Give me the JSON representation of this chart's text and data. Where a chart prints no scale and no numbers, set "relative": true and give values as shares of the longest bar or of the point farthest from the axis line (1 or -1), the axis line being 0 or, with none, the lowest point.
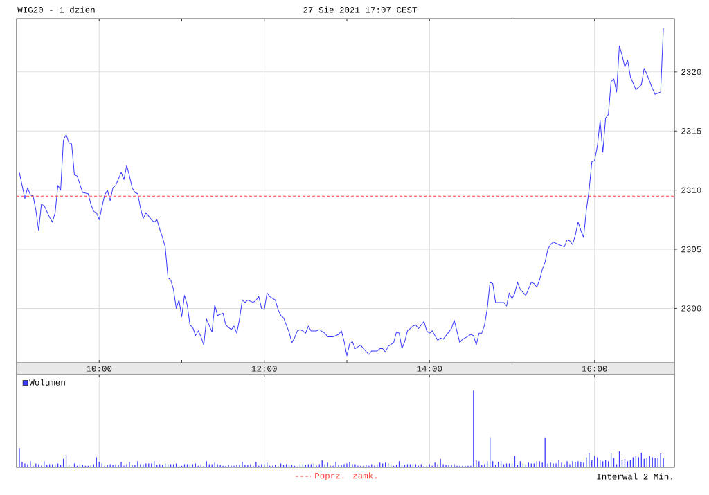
{
  "chart_data": [
    {
      "type": "line",
      "title": "WIG20 - 1 dzien",
      "subtitle": "27 Sie 2021 17:07 CEST",
      "x": [
        "2021-08-27T09:02",
        "2021-08-27T09:04",
        "2021-08-27T09:06",
        "2021-08-27T09:08",
        "2021-08-27T09:10",
        "2021-08-27T09:12",
        "2021-08-27T09:14",
        "2021-08-27T09:16",
        "2021-08-27T09:18",
        "2021-08-27T09:20",
        "2021-08-27T09:24",
        "2021-08-27T09:26",
        "2021-08-27T09:28",
        "2021-08-27T09:30",
        "2021-08-27T09:32",
        "2021-08-27T09:34",
        "2021-08-27T09:36",
        "2021-08-27T09:38",
        "2021-08-27T09:40",
        "2021-08-27T09:42",
        "2021-08-27T09:44",
        "2021-08-27T09:48",
        "2021-08-27T09:52",
        "2021-08-27T09:54",
        "2021-08-27T09:56",
        "2021-08-27T09:58",
        "2021-08-27T10:00",
        "2021-08-27T10:04",
        "2021-08-27T10:06",
        "2021-08-27T10:08",
        "2021-08-27T10:10",
        "2021-08-27T10:12",
        "2021-08-27T10:16",
        "2021-08-27T10:18",
        "2021-08-27T10:20",
        "2021-08-27T10:22",
        "2021-08-27T10:24",
        "2021-08-27T10:26",
        "2021-08-27T10:28",
        "2021-08-27T10:30",
        "2021-08-27T10:32",
        "2021-08-27T10:34",
        "2021-08-27T10:38",
        "2021-08-27T10:40",
        "2021-08-27T10:42",
        "2021-08-27T10:44",
        "2021-08-27T10:46",
        "2021-08-27T10:48",
        "2021-08-27T10:50",
        "2021-08-27T10:52",
        "2021-08-27T10:54",
        "2021-08-27T10:56",
        "2021-08-27T10:58",
        "2021-08-27T11:00",
        "2021-08-27T11:02",
        "2021-08-27T11:04",
        "2021-08-27T11:06",
        "2021-08-27T11:08",
        "2021-08-27T11:10",
        "2021-08-27T11:12",
        "2021-08-27T11:14",
        "2021-08-27T11:16",
        "2021-08-27T11:18",
        "2021-08-27T11:22",
        "2021-08-27T11:24",
        "2021-08-27T11:26",
        "2021-08-27T11:30",
        "2021-08-27T11:32",
        "2021-08-27T11:36",
        "2021-08-27T11:38",
        "2021-08-27T11:40",
        "2021-08-27T11:42",
        "2021-08-27T11:44",
        "2021-08-27T11:46",
        "2021-08-27T11:48",
        "2021-08-27T11:52",
        "2021-08-27T11:54",
        "2021-08-27T11:56",
        "2021-08-27T11:58",
        "2021-08-27T12:00",
        "2021-08-27T12:02",
        "2021-08-27T12:04",
        "2021-08-27T12:08",
        "2021-08-27T12:10",
        "2021-08-27T12:12",
        "2021-08-27T12:14",
        "2021-08-27T12:18",
        "2021-08-27T12:20",
        "2021-08-27T12:22",
        "2021-08-27T12:24",
        "2021-08-27T12:26",
        "2021-08-27T12:28",
        "2021-08-27T12:30",
        "2021-08-27T12:32",
        "2021-08-27T12:34",
        "2021-08-27T12:38",
        "2021-08-27T12:40",
        "2021-08-27T12:44",
        "2021-08-27T12:46",
        "2021-08-27T12:50",
        "2021-08-27T12:52",
        "2021-08-27T12:54",
        "2021-08-27T12:56",
        "2021-08-27T12:58",
        "2021-08-27T13:00",
        "2021-08-27T13:02",
        "2021-08-27T13:04",
        "2021-08-27T13:06",
        "2021-08-27T13:10",
        "2021-08-27T13:12",
        "2021-08-27T13:16",
        "2021-08-27T13:18",
        "2021-08-27T13:22",
        "2021-08-27T13:24",
        "2021-08-27T13:26",
        "2021-08-27T13:28",
        "2021-08-27T13:30",
        "2021-08-27T13:34",
        "2021-08-27T13:36",
        "2021-08-27T13:38",
        "2021-08-27T13:40",
        "2021-08-27T13:42",
        "2021-08-27T13:44",
        "2021-08-27T13:48",
        "2021-08-27T13:50",
        "2021-08-27T13:52",
        "2021-08-27T13:54",
        "2021-08-27T13:56",
        "2021-08-27T13:58",
        "2021-08-27T14:00",
        "2021-08-27T14:02",
        "2021-08-27T14:06",
        "2021-08-27T14:08",
        "2021-08-27T14:10",
        "2021-08-27T14:14",
        "2021-08-27T14:16",
        "2021-08-27T14:18",
        "2021-08-27T14:22",
        "2021-08-27T14:24",
        "2021-08-27T14:26",
        "2021-08-27T14:30",
        "2021-08-27T14:32",
        "2021-08-27T14:34",
        "2021-08-27T14:36",
        "2021-08-27T14:38",
        "2021-08-27T14:40",
        "2021-08-27T14:42",
        "2021-08-27T14:44",
        "2021-08-27T14:46",
        "2021-08-27T14:48",
        "2021-08-27T14:52",
        "2021-08-27T14:54",
        "2021-08-27T14:56",
        "2021-08-27T14:58",
        "2021-08-27T15:00",
        "2021-08-27T15:02",
        "2021-08-27T15:04",
        "2021-08-27T15:06",
        "2021-08-27T15:10",
        "2021-08-27T15:14",
        "2021-08-27T15:16",
        "2021-08-27T15:18",
        "2021-08-27T15:20",
        "2021-08-27T15:22",
        "2021-08-27T15:24",
        "2021-08-27T15:26",
        "2021-08-27T15:28",
        "2021-08-27T15:30",
        "2021-08-27T15:34",
        "2021-08-27T15:38",
        "2021-08-27T15:40",
        "2021-08-27T15:42",
        "2021-08-27T15:44",
        "2021-08-27T15:46",
        "2021-08-27T15:48",
        "2021-08-27T15:50",
        "2021-08-27T15:52",
        "2021-08-27T15:54",
        "2021-08-27T15:56",
        "2021-08-27T15:58",
        "2021-08-27T16:00",
        "2021-08-27T16:02",
        "2021-08-27T16:04",
        "2021-08-27T16:06",
        "2021-08-27T16:08",
        "2021-08-27T16:10",
        "2021-08-27T16:12",
        "2021-08-27T16:14",
        "2021-08-27T16:16",
        "2021-08-27T16:18",
        "2021-08-27T16:20",
        "2021-08-27T16:22",
        "2021-08-27T16:24",
        "2021-08-27T16:26",
        "2021-08-27T16:30",
        "2021-08-27T16:34",
        "2021-08-27T16:36",
        "2021-08-27T16:38",
        "2021-08-27T16:42",
        "2021-08-27T16:44",
        "2021-08-27T16:46",
        "2021-08-27T16:48",
        "2021-08-27T16:50"
      ],
      "series": [
        {
          "color": "#3939ff",
          "values": [
            2311.5,
            2310.4,
            2309.3,
            2310.2,
            2309.6,
            2309.5,
            2308.3,
            2306.6,
            2308.8,
            2308.7,
            2307.7,
            2307.3,
            2308.1,
            2310.4,
            2310.0,
            2314.2,
            2314.7,
            2314.0,
            2313.9,
            2311.3,
            2311.2,
            2309.8,
            2309.7,
            2308.8,
            2308.2,
            2308.1,
            2307.5,
            2309.6,
            2310.0,
            2309.1,
            2310.2,
            2310.4,
            2311.5,
            2310.9,
            2312.1,
            2311.2,
            2310.2,
            2309.8,
            2309.7,
            2308.5,
            2307.6,
            2308.1,
            2307.5,
            2307.3,
            2307.5,
            2306.7,
            2306.0,
            2305.2,
            2302.6,
            2302.4,
            2301.6,
            2300.0,
            2300.7,
            2299.3,
            2301.1,
            2300.3,
            2298.6,
            2298.4,
            2297.7,
            2298.1,
            2297.6,
            2296.9,
            2299.1,
            2298.0,
            2300.3,
            2299.4,
            2299.6,
            2298.6,
            2298.2,
            2298.5,
            2297.9,
            2299.1,
            2300.7,
            2300.5,
            2300.7,
            2300.5,
            2300.7,
            2301.0,
            2300.0,
            2299.9,
            2301.3,
            2301.0,
            2300.7,
            2299.9,
            2299.4,
            2299.2,
            2298.0,
            2297.1,
            2297.5,
            2298.1,
            2298.2,
            2298.1,
            2297.9,
            2298.5,
            2298.1,
            2298.1,
            2298.2,
            2297.9,
            2297.6,
            2297.6,
            2297.7,
            2297.8,
            2298.1,
            2297.2,
            2296.0,
            2297.0,
            2297.2,
            2296.6,
            2296.9,
            2296.6,
            2296.1,
            2296.4,
            2296.4,
            2296.6,
            2296.6,
            2296.3,
            2296.8,
            2297.1,
            2298.0,
            2297.9,
            2296.6,
            2297.2,
            2298.1,
            2298.5,
            2298.6,
            2298.3,
            2298.6,
            2298.9,
            2298.1,
            2297.9,
            2298.1,
            2297.3,
            2297.5,
            2297.4,
            2298.0,
            2298.3,
            2299.0,
            2297.1,
            2297.4,
            2297.5,
            2297.8,
            2297.7,
            2296.9,
            2297.9,
            2297.9,
            2298.6,
            2300.0,
            2302.2,
            2302.1,
            2300.5,
            2300.5,
            2300.5,
            2300.2,
            2301.3,
            2300.8,
            2301.3,
            2302.2,
            2301.6,
            2301.1,
            2302.2,
            2302.1,
            2301.8,
            2302.4,
            2303.3,
            2303.9,
            2305.0,
            2305.4,
            2305.6,
            2305.4,
            2305.2,
            2305.8,
            2305.7,
            2305.4,
            2306.2,
            2307.3,
            2306.6,
            2306.0,
            2308.3,
            2310.0,
            2312.4,
            2312.5,
            2313.7,
            2315.9,
            2313.2,
            2316.1,
            2316.4,
            2319.2,
            2319.4,
            2318.3,
            2322.2,
            2321.4,
            2320.4,
            2321.0,
            2319.6,
            2318.5,
            2318.9,
            2320.3,
            2319.8,
            2318.6,
            2318.1,
            2318.2,
            2318.3,
            2323.7
          ]
        }
      ],
      "xlim": [
        "2021-08-27T09:00",
        "2021-08-27T16:58"
      ],
      "ylim": [
        2295.4,
        2324.5
      ],
      "xticks": [
        {
          "value": "2021-08-27T10:00",
          "label": "10:00"
        },
        {
          "value": "2021-08-27T11:00",
          "label": null
        },
        {
          "value": "2021-08-27T12:00",
          "label": "12:00"
        },
        {
          "value": "2021-08-27T13:00",
          "label": null
        },
        {
          "value": "2021-08-27T14:00",
          "label": "14:00"
        },
        {
          "value": "2021-08-27T15:00",
          "label": null
        },
        {
          "value": "2021-08-27T16:00",
          "label": "16:00"
        }
      ],
      "yticks": [
        2300,
        2305,
        2310,
        2315,
        2320
      ],
      "grid": true,
      "ref_lines": [
        {
          "axis": "y",
          "value": 2309.5,
          "label": "Poprz. zamk.",
          "color": "#ff4040",
          "line_style": "dashed"
        }
      ]
    },
    {
      "type": "bar",
      "relative": true,
      "x": [
        "2021-08-27T09:02",
        "2021-08-27T09:04",
        "2021-08-27T09:06",
        "2021-08-27T09:08",
        "2021-08-27T09:10",
        "2021-08-27T09:12",
        "2021-08-27T09:14",
        "2021-08-27T09:16",
        "2021-08-27T09:18",
        "2021-08-27T09:20",
        "2021-08-27T09:22",
        "2021-08-27T09:24",
        "2021-08-27T09:26",
        "2021-08-27T09:28",
        "2021-08-27T09:30",
        "2021-08-27T09:32",
        "2021-08-27T09:34",
        "2021-08-27T09:36",
        "2021-08-27T09:38",
        "2021-08-27T09:40",
        "2021-08-27T09:42",
        "2021-08-27T09:44",
        "2021-08-27T09:46",
        "2021-08-27T09:48",
        "2021-08-27T09:50",
        "2021-08-27T09:52",
        "2021-08-27T09:54",
        "2021-08-27T09:56",
        "2021-08-27T09:58",
        "2021-08-27T10:00",
        "2021-08-27T10:02",
        "2021-08-27T10:04",
        "2021-08-27T10:06",
        "2021-08-27T10:08",
        "2021-08-27T10:10",
        "2021-08-27T10:12",
        "2021-08-27T10:14",
        "2021-08-27T10:16",
        "2021-08-27T10:18",
        "2021-08-27T10:20",
        "2021-08-27T10:22",
        "2021-08-27T10:24",
        "2021-08-27T10:26",
        "2021-08-27T10:28",
        "2021-08-27T10:30",
        "2021-08-27T10:32",
        "2021-08-27T10:34",
        "2021-08-27T10:36",
        "2021-08-27T10:38",
        "2021-08-27T10:40",
        "2021-08-27T10:42",
        "2021-08-27T10:44",
        "2021-08-27T10:46",
        "2021-08-27T10:48",
        "2021-08-27T10:50",
        "2021-08-27T10:52",
        "2021-08-27T10:54",
        "2021-08-27T10:56",
        "2021-08-27T10:58",
        "2021-08-27T11:00",
        "2021-08-27T11:02",
        "2021-08-27T11:04",
        "2021-08-27T11:06",
        "2021-08-27T11:08",
        "2021-08-27T11:10",
        "2021-08-27T11:12",
        "2021-08-27T11:14",
        "2021-08-27T11:16",
        "2021-08-27T11:18",
        "2021-08-27T11:20",
        "2021-08-27T11:22",
        "2021-08-27T11:24",
        "2021-08-27T11:26",
        "2021-08-27T11:28",
        "2021-08-27T11:30",
        "2021-08-27T11:32",
        "2021-08-27T11:34",
        "2021-08-27T11:36",
        "2021-08-27T11:38",
        "2021-08-27T11:40",
        "2021-08-27T11:42",
        "2021-08-27T11:44",
        "2021-08-27T11:46",
        "2021-08-27T11:48",
        "2021-08-27T11:50",
        "2021-08-27T11:52",
        "2021-08-27T11:54",
        "2021-08-27T11:56",
        "2021-08-27T11:58",
        "2021-08-27T12:00",
        "2021-08-27T12:02",
        "2021-08-27T12:04",
        "2021-08-27T12:06",
        "2021-08-27T12:08",
        "2021-08-27T12:10",
        "2021-08-27T12:12",
        "2021-08-27T12:14",
        "2021-08-27T12:16",
        "2021-08-27T12:18",
        "2021-08-27T12:20",
        "2021-08-27T12:22",
        "2021-08-27T12:24",
        "2021-08-27T12:26",
        "2021-08-27T12:28",
        "2021-08-27T12:30",
        "2021-08-27T12:32",
        "2021-08-27T12:34",
        "2021-08-27T12:36",
        "2021-08-27T12:38",
        "2021-08-27T12:40",
        "2021-08-27T12:42",
        "2021-08-27T12:44",
        "2021-08-27T12:46",
        "2021-08-27T12:48",
        "2021-08-27T12:50",
        "2021-08-27T12:52",
        "2021-08-27T12:54",
        "2021-08-27T12:56",
        "2021-08-27T12:58",
        "2021-08-27T13:00",
        "2021-08-27T13:02",
        "2021-08-27T13:04",
        "2021-08-27T13:06",
        "2021-08-27T13:08",
        "2021-08-27T13:10",
        "2021-08-27T13:12",
        "2021-08-27T13:14",
        "2021-08-27T13:16",
        "2021-08-27T13:18",
        "2021-08-27T13:20",
        "2021-08-27T13:22",
        "2021-08-27T13:24",
        "2021-08-27T13:26",
        "2021-08-27T13:28",
        "2021-08-27T13:30",
        "2021-08-27T13:32",
        "2021-08-27T13:34",
        "2021-08-27T13:36",
        "2021-08-27T13:38",
        "2021-08-27T13:40",
        "2021-08-27T13:42",
        "2021-08-27T13:44",
        "2021-08-27T13:46",
        "2021-08-27T13:48",
        "2021-08-27T13:50",
        "2021-08-27T13:52",
        "2021-08-27T13:54",
        "2021-08-27T13:56",
        "2021-08-27T13:58",
        "2021-08-27T14:00",
        "2021-08-27T14:02",
        "2021-08-27T14:04",
        "2021-08-27T14:06",
        "2021-08-27T14:08",
        "2021-08-27T14:10",
        "2021-08-27T14:12",
        "2021-08-27T14:14",
        "2021-08-27T14:16",
        "2021-08-27T14:18",
        "2021-08-27T14:20",
        "2021-08-27T14:22",
        "2021-08-27T14:24",
        "2021-08-27T14:26",
        "2021-08-27T14:28",
        "2021-08-27T14:30",
        "2021-08-27T14:32",
        "2021-08-27T14:34",
        "2021-08-27T14:36",
        "2021-08-27T14:38",
        "2021-08-27T14:40",
        "2021-08-27T14:42",
        "2021-08-27T14:44",
        "2021-08-27T14:46",
        "2021-08-27T14:48",
        "2021-08-27T14:50",
        "2021-08-27T14:52",
        "2021-08-27T14:54",
        "2021-08-27T14:56",
        "2021-08-27T14:58",
        "2021-08-27T15:00",
        "2021-08-27T15:02",
        "2021-08-27T15:04",
        "2021-08-27T15:06",
        "2021-08-27T15:08",
        "2021-08-27T15:10",
        "2021-08-27T15:12",
        "2021-08-27T15:14",
        "2021-08-27T15:16",
        "2021-08-27T15:18",
        "2021-08-27T15:20",
        "2021-08-27T15:22",
        "2021-08-27T15:24",
        "2021-08-27T15:26",
        "2021-08-27T15:28",
        "2021-08-27T15:30",
        "2021-08-27T15:32",
        "2021-08-27T15:34",
        "2021-08-27T15:36",
        "2021-08-27T15:38",
        "2021-08-27T15:40",
        "2021-08-27T15:42",
        "2021-08-27T15:44",
        "2021-08-27T15:46",
        "2021-08-27T15:48",
        "2021-08-27T15:50",
        "2021-08-27T15:52",
        "2021-08-27T15:54",
        "2021-08-27T15:56",
        "2021-08-27T15:58",
        "2021-08-27T16:00",
        "2021-08-27T16:02",
        "2021-08-27T16:04",
        "2021-08-27T16:06",
        "2021-08-27T16:08",
        "2021-08-27T16:10",
        "2021-08-27T16:12",
        "2021-08-27T16:14",
        "2021-08-27T16:16",
        "2021-08-27T16:18",
        "2021-08-27T16:20",
        "2021-08-27T16:22",
        "2021-08-27T16:24",
        "2021-08-27T16:26",
        "2021-08-27T16:28",
        "2021-08-27T16:30",
        "2021-08-27T16:32",
        "2021-08-27T16:34",
        "2021-08-27T16:36",
        "2021-08-27T16:38",
        "2021-08-27T16:40",
        "2021-08-27T16:42",
        "2021-08-27T16:44",
        "2021-08-27T16:46",
        "2021-08-27T16:48",
        "2021-08-27T16:50"
      ],
      "series": [
        {
          "name": "Wolumen",
          "color": "#3c3cff",
          "values": [
            0.25,
            0.07,
            0.05,
            0.04,
            0.08,
            0.02,
            0.05,
            0.04,
            0.02,
            0.08,
            0.03,
            0.04,
            0.04,
            0.04,
            0.05,
            0.03,
            0.11,
            0.16,
            0.03,
            0.01,
            0.05,
            0.02,
            0.04,
            0.03,
            0.02,
            0.02,
            0.03,
            0.04,
            0.13,
            0.07,
            0.05,
            0.02,
            0.03,
            0.04,
            0.03,
            0.04,
            0.03,
            0.07,
            0.02,
            0.04,
            0.07,
            0.03,
            0.03,
            0.08,
            0.04,
            0.04,
            0.05,
            0.05,
            0.05,
            0.08,
            0.03,
            0.04,
            0.03,
            0.05,
            0.04,
            0.04,
            0.04,
            0.05,
            0.02,
            0.02,
            0.04,
            0.04,
            0.04,
            0.04,
            0.05,
            0.02,
            0.04,
            0.02,
            0.08,
            0.04,
            0.04,
            0.06,
            0.04,
            0.03,
            0.02,
            0.02,
            0.03,
            0.02,
            0.02,
            0.03,
            0.03,
            0.07,
            0.03,
            0.03,
            0.04,
            0.02,
            0.07,
            0.02,
            0.04,
            0.04,
            0.06,
            0.02,
            0.02,
            0.03,
            0.02,
            0.05,
            0.03,
            0.04,
            0.04,
            0.03,
            0.02,
            0.01,
            0.04,
            0.04,
            0.03,
            0.04,
            0.04,
            0.05,
            0.02,
            0.04,
            0.09,
            0.04,
            0.06,
            0.02,
            0.02,
            0.07,
            0.03,
            0.03,
            0.04,
            0.05,
            0.07,
            0.04,
            0.04,
            0.02,
            0.02,
            0.02,
            0.03,
            0.02,
            0.04,
            0.02,
            0.04,
            0.06,
            0.05,
            0.06,
            0.05,
            0.04,
            0.02,
            0.03,
            0.08,
            0.03,
            0.03,
            0.04,
            0.04,
            0.04,
            0.04,
            0.02,
            0.04,
            0.02,
            0.02,
            0.04,
            0.02,
            0.06,
            0.04,
            0.11,
            0.04,
            0.03,
            0.03,
            0.03,
            0.04,
            0.02,
            0.02,
            0.02,
            0.02,
            0.02,
            0.02,
            1,
            0.09,
            0.08,
            0.03,
            0.04,
            0.08,
            0.39,
            0.08,
            0.03,
            0.07,
            0.08,
            0.04,
            0.05,
            0.05,
            0.05,
            0.15,
            0.03,
            0.08,
            0.05,
            0.04,
            0.06,
            0.05,
            0.05,
            0.08,
            0.08,
            0.06,
            0.39,
            0.05,
            0.06,
            0.05,
            0.05,
            0.1,
            0.06,
            0.04,
            0.08,
            0.04,
            0.08,
            0.07,
            0.08,
            0.07,
            0.06,
            0.13,
            0.19,
            0.09,
            0.15,
            0.13,
            0.1,
            0.08,
            0.1,
            0.08,
            0.19,
            0.12,
            0.04,
            0.21,
            0.09,
            0.11,
            0.08,
            0.1,
            0.13,
            0.15,
            0.13,
            0.19,
            0.11,
            0.12,
            0.15,
            0.13,
            0.12,
            0.12,
            0.18,
            0.12
          ]
        }
      ],
      "xlim": [
        "2021-08-27T09:00",
        "2021-08-27T16:58"
      ],
      "xticks": [
        {
          "value": "2021-08-27T10:00",
          "label": null
        },
        {
          "value": "2021-08-27T12:00",
          "label": null
        },
        {
          "value": "2021-08-27T14:00",
          "label": null
        },
        {
          "value": "2021-08-27T16:00",
          "label": null
        }
      ],
      "tick_labels": false,
      "grid": "x",
      "legend": "top left",
      "annotations": [
        "Interwal 2 Min."
      ]
    }
  ]
}
